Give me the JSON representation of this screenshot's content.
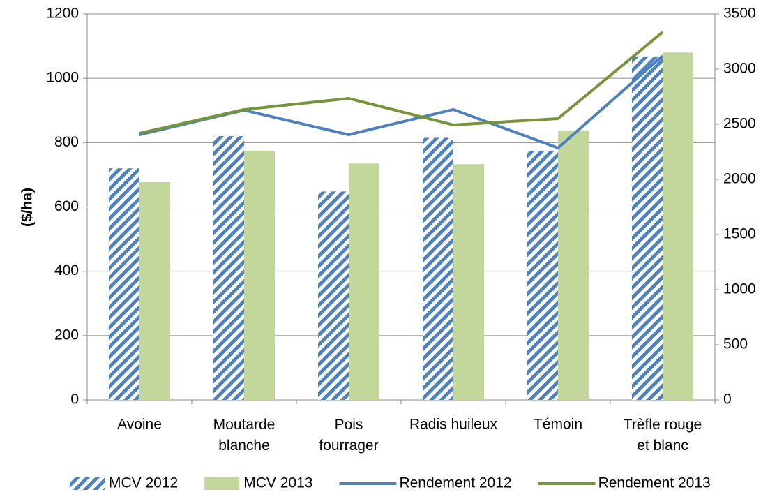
{
  "chart_data": {
    "type": "bar-line",
    "y_label": "($/ha)",
    "categories": [
      "Avoine",
      "Moutarde\nblanche",
      "Pois\nfourrager",
      "Radis huileux",
      "Témoin",
      "Trèfle rouge\net blanc"
    ],
    "series": [
      {
        "name": "MCV 2012",
        "type": "bar",
        "color": "#4f81bd",
        "hatch": true,
        "values": [
          720,
          820,
          648,
          815,
          775,
          1068
        ]
      },
      {
        "name": "MCV 2013",
        "type": "bar",
        "color": "#c3d69b",
        "values": [
          677,
          775,
          735,
          733,
          838,
          1080
        ]
      },
      {
        "name": "Rendement 2012",
        "type": "line",
        "axis": "y2",
        "color": "#4f81bd",
        "values": [
          2405,
          2627,
          2405,
          2633,
          2285,
          3120
        ]
      },
      {
        "name": "Rendement 2013",
        "type": "line",
        "axis": "y2",
        "color": "#77933c",
        "values": [
          2418,
          2633,
          2734,
          2494,
          2551,
          3335
        ]
      }
    ],
    "ylim": [
      0,
      1200
    ],
    "yticks": [
      0,
      200,
      400,
      600,
      800,
      1000,
      1200
    ],
    "y2lim": [
      0,
      3500
    ],
    "y2ticks": [
      0,
      500,
      1000,
      1500,
      2000,
      2500,
      3000,
      3500
    ],
    "grid": true,
    "legend": "bottom"
  }
}
